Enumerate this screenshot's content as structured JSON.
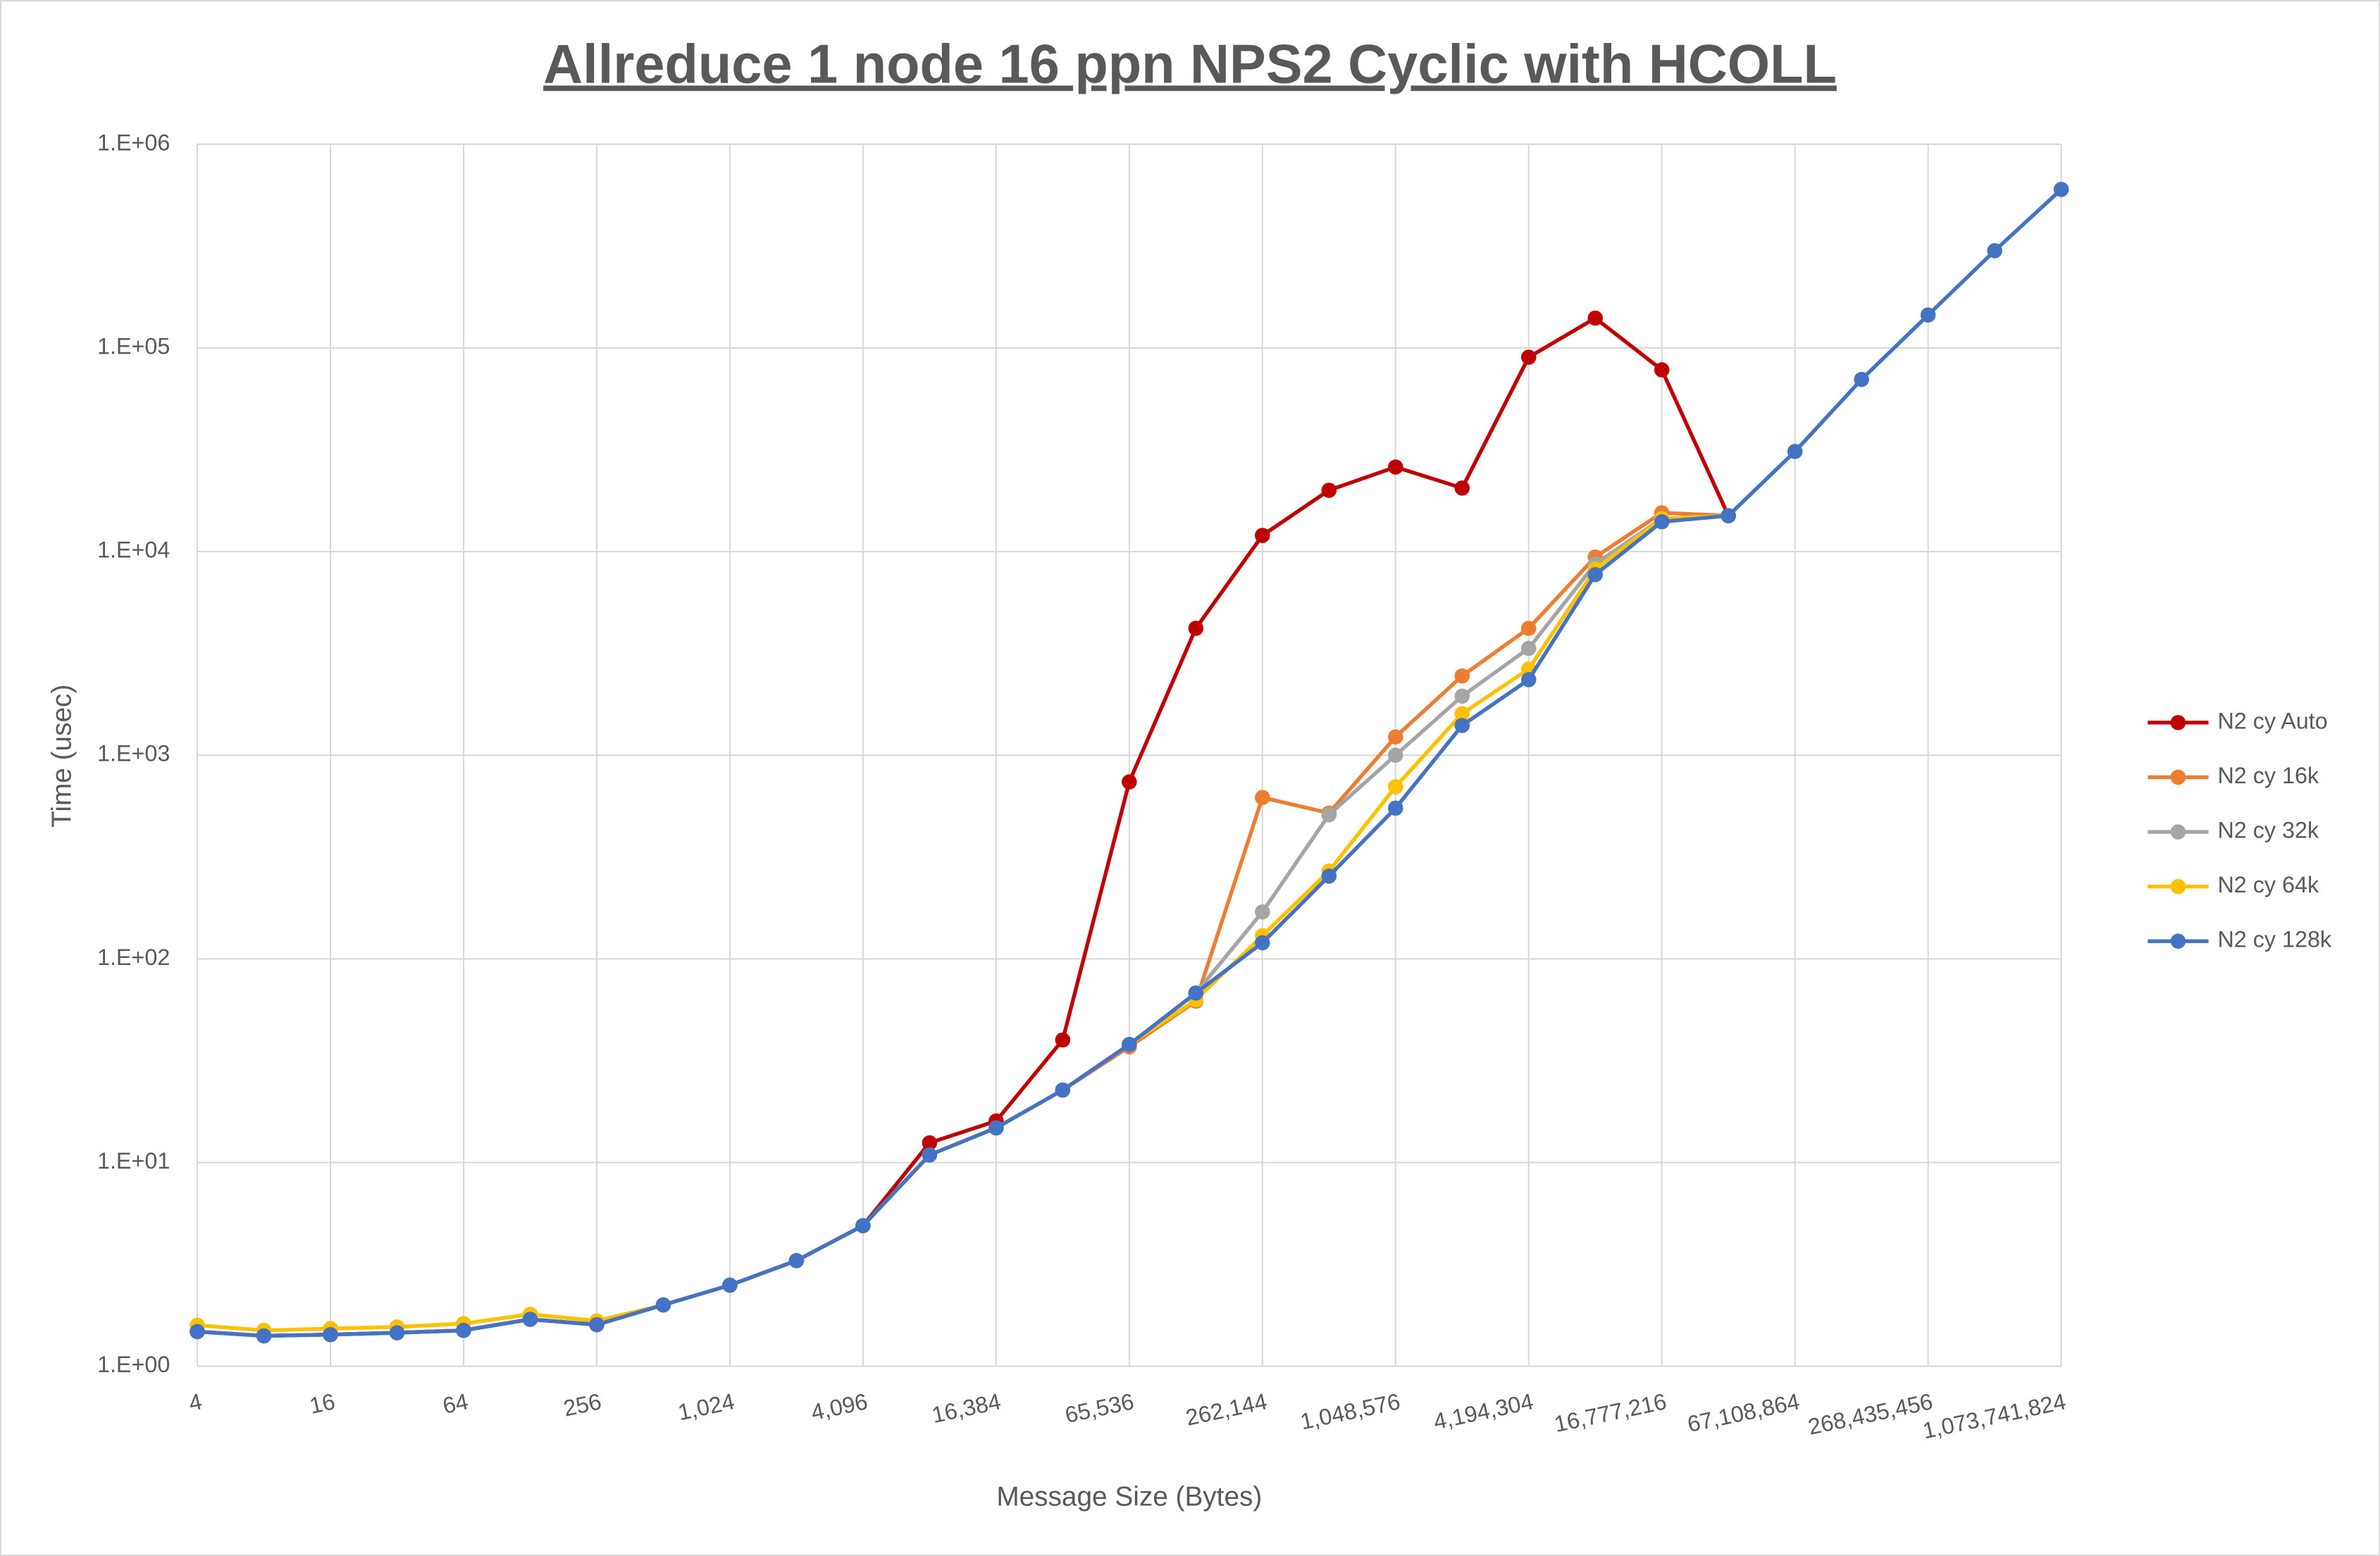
{
  "chart_data": {
    "type": "line",
    "title": "Allreduce 1 node 16 ppn NPS2 Cyclic with HCOLL",
    "x_label": "Message Size (Bytes)",
    "y_label": "Time (usec)",
    "x_log_base": 2,
    "y_log_base": 10,
    "grid": true,
    "legend": "right",
    "x": [
      4,
      8,
      16,
      32,
      64,
      128,
      256,
      512,
      1024,
      2048,
      4096,
      8192,
      16384,
      32768,
      65536,
      131072,
      262144,
      524288,
      1048576,
      2097152,
      4194304,
      8388608,
      16777216,
      33554432,
      67108864,
      134217728,
      268435456,
      536870912,
      1073741824
    ],
    "xlim": [
      4,
      1073741824
    ],
    "xticks": [
      4,
      16,
      64,
      256,
      {
        "value": 1024,
        "label": "1,024"
      },
      {
        "value": 4096,
        "label": "4,096"
      },
      {
        "value": 16384,
        "label": "16,384"
      },
      {
        "value": 65536,
        "label": "65,536"
      },
      {
        "value": 262144,
        "label": "262,144"
      },
      {
        "value": 1048576,
        "label": "1,048,576"
      },
      {
        "value": 4194304,
        "label": "4,194,304"
      },
      {
        "value": 16777216,
        "label": "16,777,216"
      },
      {
        "value": 67108864,
        "label": "67,108,864"
      },
      {
        "value": 268435456,
        "label": "268,435,456"
      },
      {
        "value": 1073741824,
        "label": "1,073,741,824"
      }
    ],
    "ylim": [
      1,
      1000000
    ],
    "yticks": [
      {
        "value": 1,
        "label": "1.E+00"
      },
      {
        "value": 10,
        "label": "1.E+01"
      },
      {
        "value": 100,
        "label": "1.E+02"
      },
      {
        "value": 1000,
        "label": "1.E+03"
      },
      {
        "value": 10000,
        "label": "1.E+04"
      },
      {
        "value": 100000,
        "label": "1.E+05"
      },
      {
        "value": 1000000,
        "label": "1.E+06"
      }
    ],
    "series": [
      {
        "name": "N2 cy Auto",
        "color": "#c00000",
        "values": [
          1.48,
          1.41,
          1.43,
          1.46,
          1.5,
          1.7,
          1.6,
          2.0,
          2.5,
          3.3,
          4.9,
          12.5,
          16,
          40,
          740,
          4200,
          12000,
          20000,
          26000,
          20500,
          90000,
          140000,
          78000,
          15000,
          null,
          null,
          null,
          null,
          null
        ]
      },
      {
        "name": "N2 cy 16k",
        "color": "#ed7d31",
        "values": [
          1.48,
          1.41,
          1.43,
          1.46,
          1.5,
          1.7,
          1.6,
          2.0,
          2.5,
          3.3,
          4.9,
          10.9,
          14.8,
          22.7,
          37,
          62,
          620,
          520,
          1230,
          2450,
          4200,
          9400,
          15500,
          15000,
          null,
          null,
          null,
          null,
          null
        ]
      },
      {
        "name": "N2 cy 32k",
        "color": "#a5a5a5",
        "values": [
          1.48,
          1.41,
          1.43,
          1.46,
          1.5,
          1.7,
          1.6,
          2.0,
          2.5,
          3.3,
          4.9,
          10.9,
          14.8,
          22.7,
          38,
          68,
          170,
          510,
          1000,
          1950,
          3350,
          8700,
          14500,
          15000,
          null,
          null,
          null,
          null,
          null
        ]
      },
      {
        "name": "N2 cy 64k",
        "color": "#ffc000",
        "values": [
          1.59,
          1.5,
          1.53,
          1.56,
          1.62,
          1.8,
          1.67,
          2.0,
          2.5,
          3.3,
          4.9,
          10.9,
          14.8,
          22.7,
          38,
          63,
          130,
          270,
          700,
          1600,
          2650,
          8200,
          14500,
          15000,
          null,
          null,
          null,
          null,
          null
        ]
      },
      {
        "name": "N2 cy 128k",
        "color": "#4472c4",
        "values": [
          1.48,
          1.41,
          1.43,
          1.46,
          1.5,
          1.7,
          1.6,
          2.0,
          2.5,
          3.3,
          4.9,
          10.9,
          14.8,
          22.7,
          38,
          68,
          120,
          255,
          550,
          1400,
          2350,
          7700,
          14000,
          15000,
          31000,
          70000,
          145000,
          300000,
          600000
        ]
      }
    ]
  }
}
